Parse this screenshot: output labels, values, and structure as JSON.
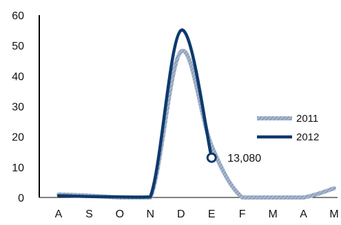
{
  "chart_data": {
    "type": "line",
    "categories": [
      "A",
      "S",
      "O",
      "N",
      "D",
      "E",
      "F",
      "M",
      "A",
      "M"
    ],
    "ylim": [
      0,
      60
    ],
    "yticks": [
      0,
      10,
      20,
      30,
      40,
      50,
      60
    ],
    "grid": false,
    "legend_position": "right",
    "series": [
      {
        "name": "2011",
        "values": [
          1.0,
          0.6,
          0.0,
          0.0,
          48.0,
          17.0,
          0.0,
          0.0,
          0.0,
          3.0
        ],
        "color": "#8c9fbd",
        "style": "hatched"
      },
      {
        "name": "2012",
        "values": [
          0.6,
          0.3,
          0.2,
          0.2,
          55.0,
          13.08,
          null,
          null,
          null,
          null
        ],
        "color": "#0e3a6c",
        "style": "solid"
      }
    ],
    "annotations": [
      {
        "series": "2012",
        "category_index": 5,
        "value": 13.08,
        "label": "13,080"
      }
    ]
  }
}
